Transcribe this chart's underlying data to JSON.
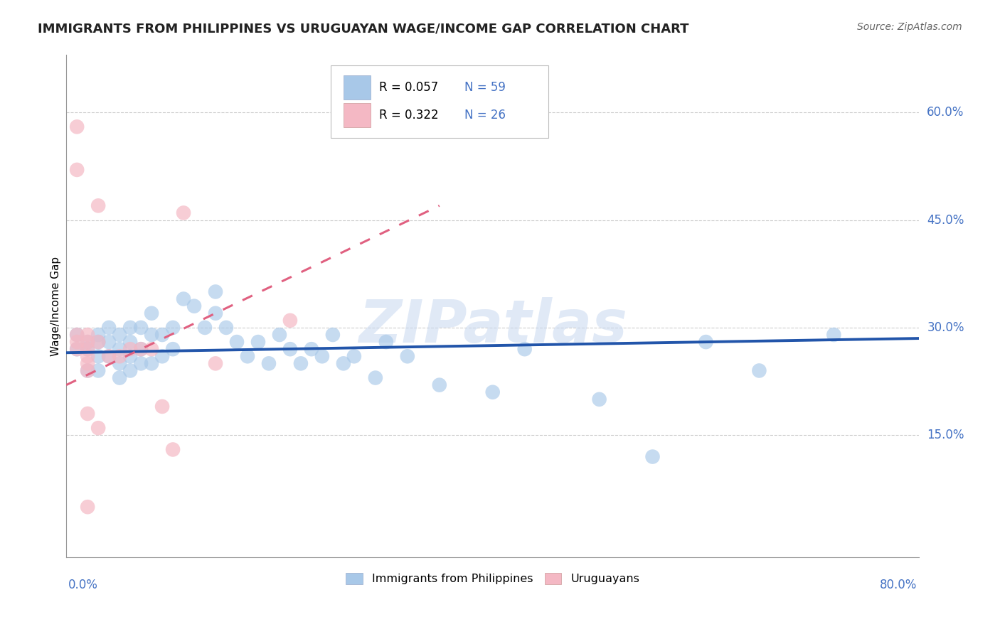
{
  "title": "IMMIGRANTS FROM PHILIPPINES VS URUGUAYAN WAGE/INCOME GAP CORRELATION CHART",
  "source": "Source: ZipAtlas.com",
  "ylabel": "Wage/Income Gap",
  "ytick_labels": [
    "15.0%",
    "30.0%",
    "45.0%",
    "60.0%"
  ],
  "ytick_values": [
    0.15,
    0.3,
    0.45,
    0.6
  ],
  "xlim": [
    0.0,
    0.8
  ],
  "ylim": [
    -0.02,
    0.68
  ],
  "legend_label1": "Immigrants from Philippines",
  "legend_label2": "Uruguayans",
  "legend_R1": "R = 0.057",
  "legend_N1": "N = 59",
  "legend_R2": "R = 0.322",
  "legend_N2": "N = 26",
  "blue_color": "#a8c8e8",
  "pink_color": "#f4b8c4",
  "blue_line_color": "#2255aa",
  "pink_line_color": "#e06080",
  "watermark": "ZIPatlas",
  "blue_points_x": [
    0.01,
    0.01,
    0.02,
    0.02,
    0.02,
    0.03,
    0.03,
    0.03,
    0.03,
    0.04,
    0.04,
    0.04,
    0.05,
    0.05,
    0.05,
    0.05,
    0.06,
    0.06,
    0.06,
    0.06,
    0.07,
    0.07,
    0.07,
    0.08,
    0.08,
    0.08,
    0.09,
    0.09,
    0.1,
    0.1,
    0.11,
    0.12,
    0.13,
    0.14,
    0.14,
    0.15,
    0.16,
    0.17,
    0.18,
    0.19,
    0.2,
    0.21,
    0.22,
    0.23,
    0.24,
    0.25,
    0.26,
    0.27,
    0.29,
    0.3,
    0.32,
    0.35,
    0.4,
    0.43,
    0.5,
    0.55,
    0.6,
    0.65,
    0.72
  ],
  "blue_points_y": [
    0.29,
    0.27,
    0.28,
    0.27,
    0.24,
    0.29,
    0.28,
    0.26,
    0.24,
    0.3,
    0.28,
    0.26,
    0.29,
    0.27,
    0.25,
    0.23,
    0.3,
    0.28,
    0.26,
    0.24,
    0.3,
    0.27,
    0.25,
    0.32,
    0.29,
    0.25,
    0.29,
    0.26,
    0.3,
    0.27,
    0.34,
    0.33,
    0.3,
    0.35,
    0.32,
    0.3,
    0.28,
    0.26,
    0.28,
    0.25,
    0.29,
    0.27,
    0.25,
    0.27,
    0.26,
    0.29,
    0.25,
    0.26,
    0.23,
    0.28,
    0.26,
    0.22,
    0.21,
    0.27,
    0.2,
    0.12,
    0.28,
    0.24,
    0.29
  ],
  "pink_points_x": [
    0.01,
    0.01,
    0.01,
    0.01,
    0.01,
    0.02,
    0.02,
    0.02,
    0.02,
    0.02,
    0.02,
    0.02,
    0.03,
    0.03,
    0.03,
    0.04,
    0.05,
    0.06,
    0.07,
    0.09,
    0.1,
    0.14,
    0.21,
    0.08,
    0.11,
    0.02
  ],
  "pink_points_y": [
    0.58,
    0.52,
    0.29,
    0.28,
    0.27,
    0.29,
    0.28,
    0.27,
    0.26,
    0.25,
    0.24,
    0.18,
    0.47,
    0.28,
    0.16,
    0.26,
    0.26,
    0.27,
    0.27,
    0.19,
    0.13,
    0.25,
    0.31,
    0.27,
    0.46,
    0.05
  ],
  "pink_line_x0": 0.0,
  "pink_line_y0": 0.22,
  "pink_line_x1": 0.35,
  "pink_line_y1": 0.47,
  "blue_line_x0": 0.0,
  "blue_line_y0": 0.265,
  "blue_line_x1": 0.8,
  "blue_line_y1": 0.285
}
